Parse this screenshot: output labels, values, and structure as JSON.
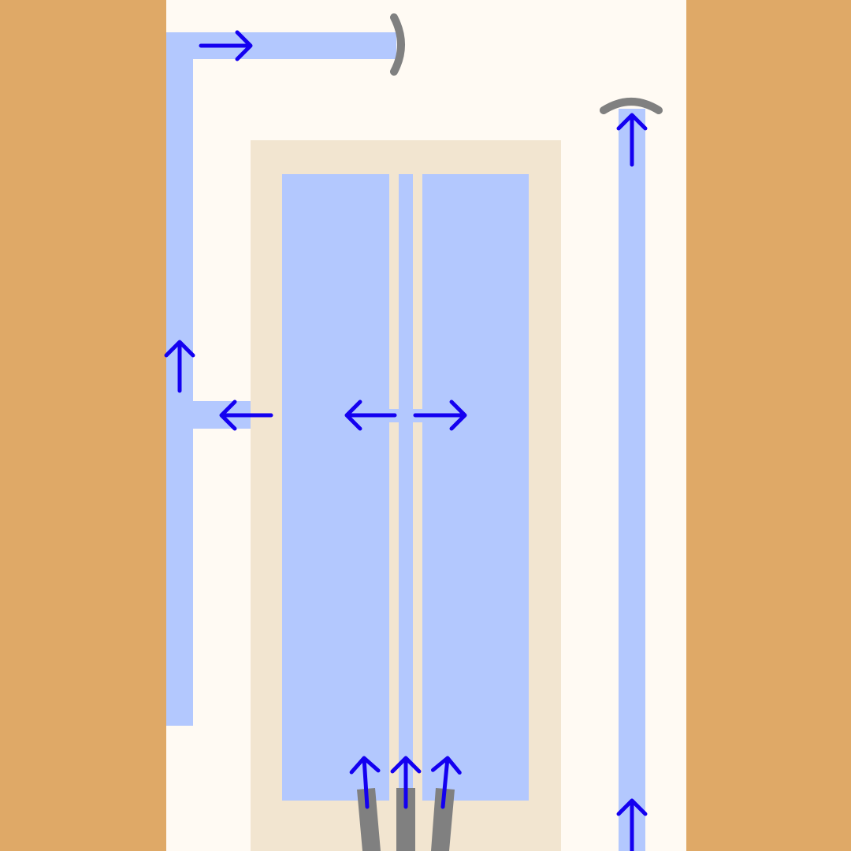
{
  "colors": {
    "wall": "#dfa967",
    "floor": "#fffaf3",
    "inner_frame": "#f2e5d0",
    "channel": "#b3c8fe",
    "arrow": "#1400f0",
    "nozzle": "#808080"
  },
  "diagram": {
    "kind": "flow-channel-schematic",
    "flow_direction_icon": "arrow-icon",
    "nozzle_icon": "gray-nozzle-icon",
    "deflector_icon": "curved-deflector-icon",
    "arrows": [
      {
        "id": "top-right",
        "direction": "right"
      },
      {
        "id": "left-up",
        "direction": "up"
      },
      {
        "id": "branch-left",
        "direction": "left"
      },
      {
        "id": "center-left",
        "direction": "left"
      },
      {
        "id": "center-right",
        "direction": "right"
      },
      {
        "id": "inlet-left",
        "direction": "up"
      },
      {
        "id": "inlet-center",
        "direction": "up"
      },
      {
        "id": "inlet-right",
        "direction": "up"
      },
      {
        "id": "right-top",
        "direction": "up"
      },
      {
        "id": "right-bottom",
        "direction": "up"
      }
    ]
  }
}
